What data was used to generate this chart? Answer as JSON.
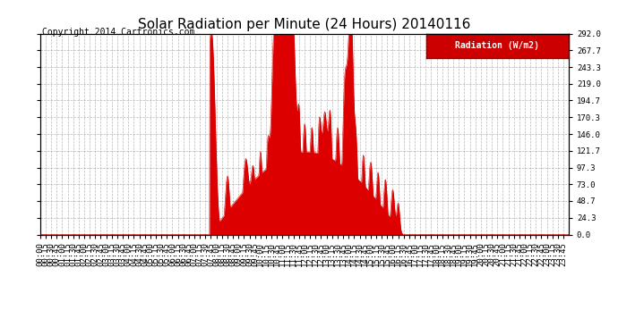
{
  "title": "Solar Radiation per Minute (24 Hours) 20140116",
  "copyright": "Copyright 2014 Cartronics.com",
  "legend_label": "Radiation (W/m2)",
  "ylim": [
    0,
    292.0
  ],
  "yticks": [
    0.0,
    24.3,
    48.7,
    73.0,
    97.3,
    121.7,
    146.0,
    170.3,
    194.7,
    219.0,
    243.3,
    267.7,
    292.0
  ],
  "fill_color": "#dd0000",
  "grid_color": "#888888",
  "background_color": "#ffffff",
  "title_fontsize": 11,
  "copyright_fontsize": 7,
  "tick_fontsize": 6.5,
  "legend_bg_color": "#cc0000",
  "legend_text_color": "#ffffff",
  "sunrise_min": 462,
  "sunset_min": 988
}
